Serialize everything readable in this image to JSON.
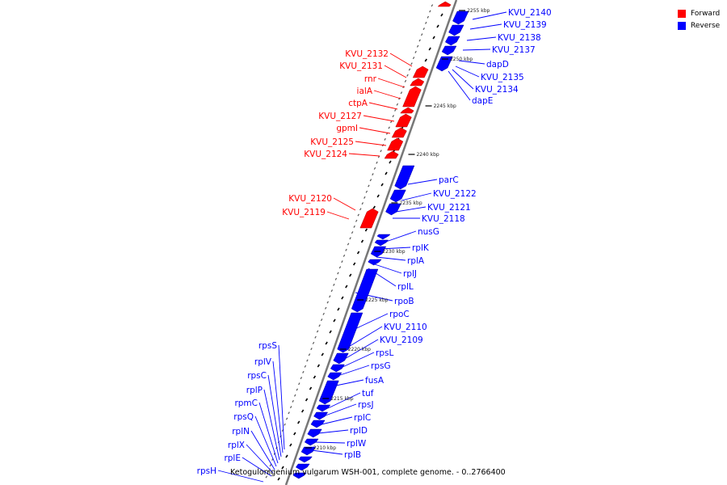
{
  "legend": {
    "forward_label": "Forward",
    "reverse_label": "Reverse",
    "forward_color": "#ff0000",
    "reverse_color": "#0000ff"
  },
  "caption": "Ketogulonigenium vulgarum WSH-001, complete genome. - 0..2766400",
  "axis_unit": "kbp",
  "ruler_marks": [
    "2210 kbp",
    "2215 kbp",
    "2220 kbp",
    "2225 kbp",
    "2230 kbp",
    "2235 kbp",
    "2240 kbp",
    "2245 kbp",
    "2250 kbp",
    "2255 kbp"
  ],
  "forward_genes": [
    "KVU_2132",
    "KVU_2131",
    "rnr",
    "ialA",
    "ctpA",
    "KVU_2127",
    "gpmI",
    "KVU_2125",
    "KVU_2124",
    "KVU_2120",
    "KVU_2119"
  ],
  "reverse_genes_right": [
    "KVU_2140",
    "KVU_2139",
    "KVU_2138",
    "KVU_2137",
    "dapD",
    "KVU_2135",
    "KVU_2134",
    "dapE",
    "parC",
    "KVU_2122",
    "KVU_2121",
    "KVU_2118",
    "nusG",
    "rplK",
    "rplA",
    "rplJ",
    "rplL",
    "rpoB",
    "rpoC",
    "KVU_2110",
    "KVU_2109",
    "rpsL",
    "rpsG",
    "fusA",
    "tuf",
    "rpsJ",
    "rplC",
    "rplD",
    "rplW",
    "rplB"
  ],
  "reverse_genes_left": [
    "rpsS",
    "rplV",
    "rpsC",
    "rplP",
    "rpmC",
    "rpsQ",
    "rplN",
    "rplX",
    "rplE",
    "rpsH"
  ]
}
